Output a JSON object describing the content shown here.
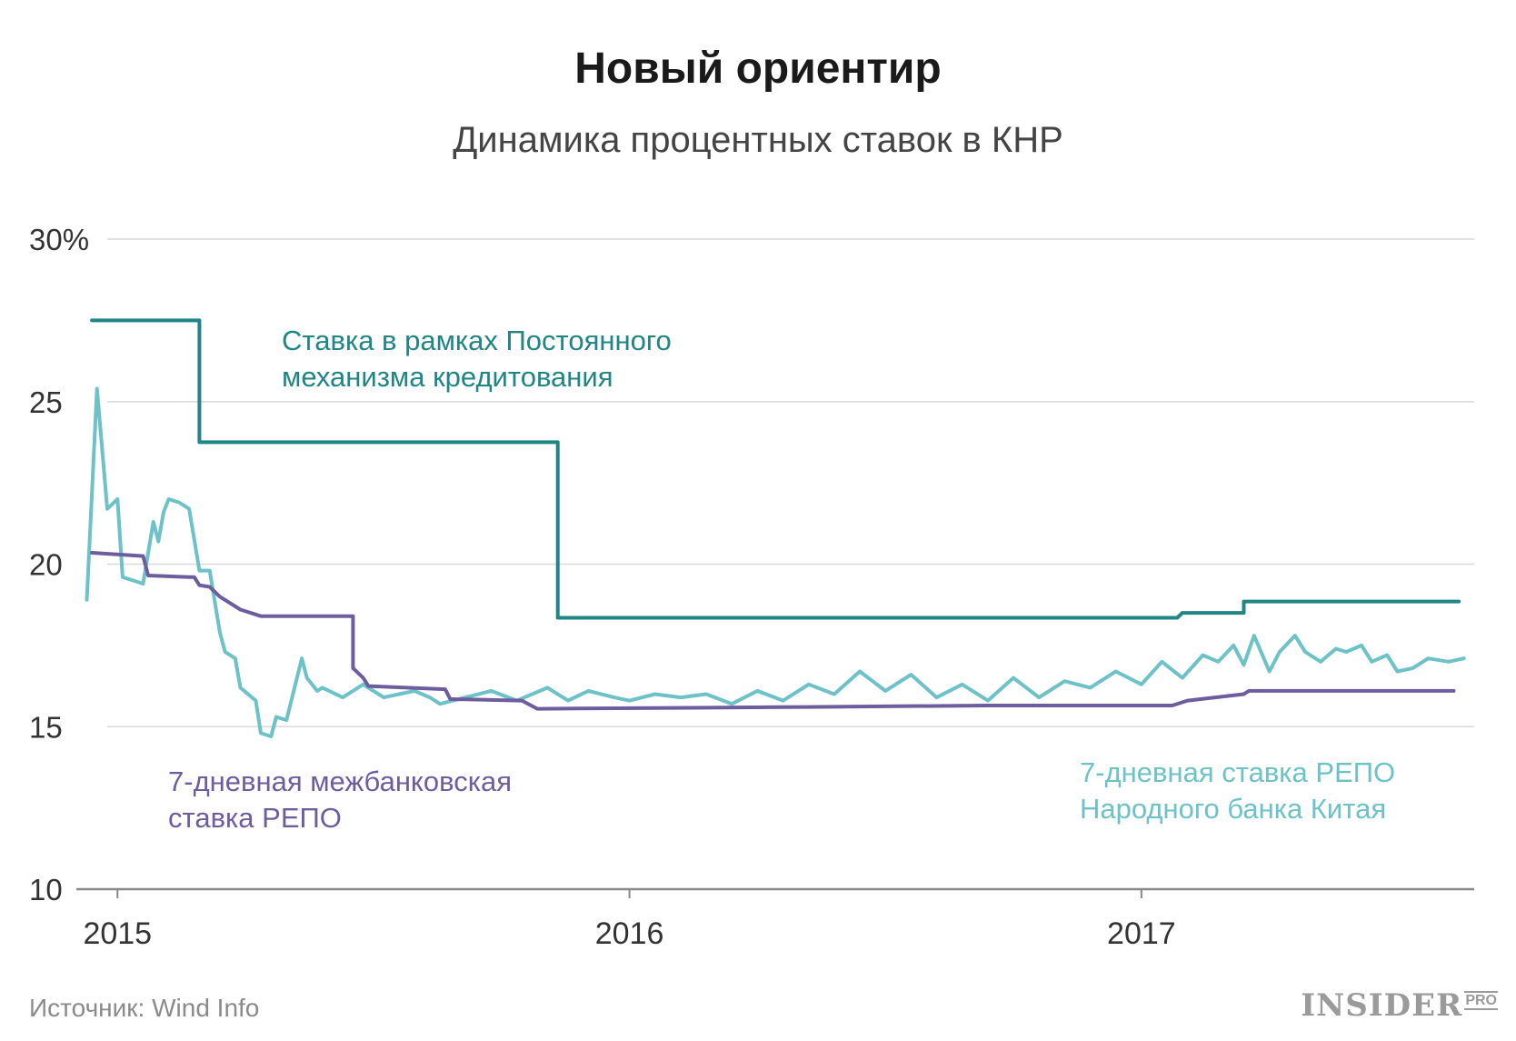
{
  "title": "Новый ориентир",
  "subtitle": "Динамика процентных ставок в КНР",
  "source": "Источник: Wind Info",
  "logo": {
    "main": "INSIDER",
    "suffix": "PRO"
  },
  "colors": {
    "slf": "#1f8585",
    "interbank": "#6e5d9e",
    "pboc": "#6dc2c8",
    "grid": "#d9d9d9",
    "axis": "#888888"
  },
  "chart_data": {
    "type": "line",
    "title": "Новый ориентир",
    "subtitle": "Динамика процентных ставок в КНР",
    "ylim": [
      10,
      30
    ],
    "yticks": [
      10,
      15,
      20,
      25,
      30
    ],
    "ytick_labels": [
      "10",
      "15",
      "20",
      "25",
      "30%"
    ],
    "xlim": [
      2014.98,
      2017.65
    ],
    "xticks": [
      2015,
      2016,
      2017
    ],
    "xtick_labels": [
      "2015",
      "2016",
      "2017"
    ],
    "grid": true,
    "series": [
      {
        "name": "Ставка в рамках Постоянного механизма кредитования",
        "label_lines": [
          "Ставка в рамках Постоянного",
          "механизма кредитования"
        ],
        "color": "#1f8585",
        "x": [
          2014.95,
          2015.16,
          2015.16,
          2015.86,
          2015.86,
          2017.07,
          2017.08,
          2017.2,
          2017.2,
          2017.62
        ],
        "y": [
          27.5,
          27.5,
          23.75,
          23.75,
          18.35,
          18.35,
          18.5,
          18.5,
          18.85,
          18.85
        ]
      },
      {
        "name": "7-дневная межбанковская ставка РЕПО",
        "label_lines": [
          "7-дневная межбанковская",
          "ставка РЕПО"
        ],
        "color": "#6e5d9e",
        "x": [
          2014.95,
          2015.05,
          2015.06,
          2015.14,
          2015.15,
          2015.16,
          2015.18,
          2015.2,
          2015.24,
          2015.28,
          2015.46,
          2015.46,
          2015.48,
          2015.49,
          2015.64,
          2015.65,
          2015.79,
          2015.82,
          2016.3,
          2016.7,
          2017.06,
          2017.09,
          2017.2,
          2017.21,
          2017.61
        ],
        "y": [
          20.35,
          20.25,
          19.65,
          19.6,
          19.6,
          19.35,
          19.3,
          19.0,
          18.6,
          18.4,
          18.4,
          16.8,
          16.5,
          16.25,
          16.15,
          15.85,
          15.8,
          15.55,
          15.6,
          15.65,
          15.65,
          15.8,
          16.0,
          16.1,
          16.1
        ]
      },
      {
        "name": "7-дневная ставка РЕПО Народного банка Китая",
        "label_lines": [
          "7-дневная ставка РЕПО",
          "Народного банка Китая"
        ],
        "color": "#6dc2c8",
        "x": [
          2014.94,
          2014.96,
          2014.98,
          2015.0,
          2015.01,
          2015.03,
          2015.05,
          2015.07,
          2015.08,
          2015.09,
          2015.1,
          2015.12,
          2015.14,
          2015.16,
          2015.18,
          2015.2,
          2015.21,
          2015.22,
          2015.23,
          2015.24,
          2015.27,
          2015.28,
          2015.3,
          2015.31,
          2015.33,
          2015.36,
          2015.37,
          2015.39,
          2015.4,
          2015.44,
          2015.48,
          2015.52,
          2015.55,
          2015.58,
          2015.61,
          2015.63,
          2015.68,
          2015.73,
          2015.78,
          2015.84,
          2015.88,
          2015.92,
          2015.97,
          2016.0,
          2016.05,
          2016.1,
          2016.15,
          2016.2,
          2016.25,
          2016.3,
          2016.35,
          2016.4,
          2016.45,
          2016.5,
          2016.55,
          2016.6,
          2016.65,
          2016.7,
          2016.75,
          2016.8,
          2016.85,
          2016.9,
          2016.95,
          2017.0,
          2017.04,
          2017.08,
          2017.12,
          2017.15,
          2017.18,
          2017.2,
          2017.22,
          2017.25,
          2017.27,
          2017.3,
          2017.32,
          2017.35,
          2017.38,
          2017.4,
          2017.43,
          2017.45,
          2017.48,
          2017.5,
          2017.53,
          2017.56,
          2017.6,
          2017.63
        ],
        "y": [
          18.9,
          25.4,
          21.7,
          22.0,
          19.6,
          19.5,
          19.4,
          21.3,
          20.7,
          21.6,
          22.0,
          21.9,
          21.7,
          19.8,
          19.8,
          17.9,
          17.3,
          17.2,
          17.1,
          16.2,
          15.8,
          14.8,
          14.7,
          15.3,
          15.2,
          17.1,
          16.5,
          16.1,
          16.2,
          15.9,
          16.3,
          15.9,
          16.0,
          16.1,
          15.9,
          15.7,
          15.9,
          16.1,
          15.8,
          16.2,
          15.8,
          16.1,
          15.9,
          15.8,
          16.0,
          15.9,
          16.0,
          15.7,
          16.1,
          15.8,
          16.3,
          16.0,
          16.7,
          16.1,
          16.6,
          15.9,
          16.3,
          15.8,
          16.5,
          15.9,
          16.4,
          16.2,
          16.7,
          16.3,
          17.0,
          16.5,
          17.2,
          17.0,
          17.5,
          16.9,
          17.8,
          16.7,
          17.3,
          17.8,
          17.3,
          17.0,
          17.4,
          17.3,
          17.5,
          17.0,
          17.2,
          16.7,
          16.8,
          17.1,
          17.0,
          17.1
        ]
      }
    ]
  }
}
